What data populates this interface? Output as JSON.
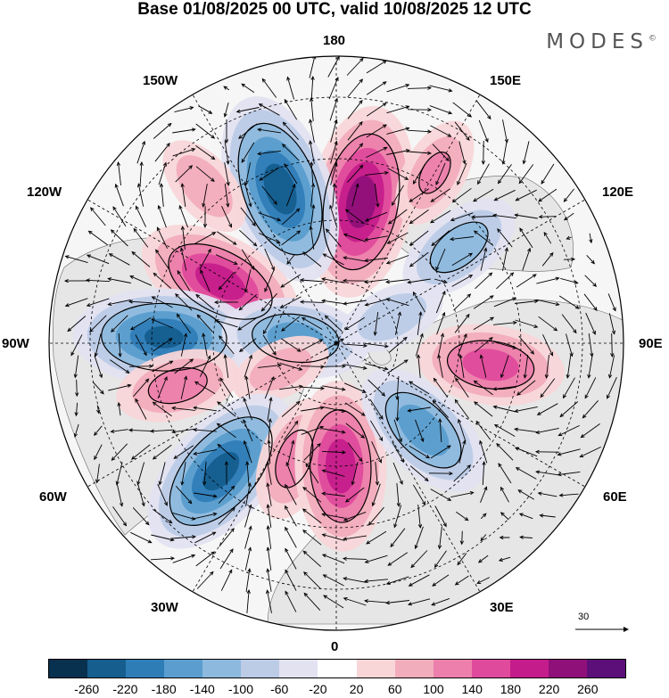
{
  "title": "Base 01/08/2025 00 UTC, valid 10/08/2025 12 UTC",
  "brand": "MODES",
  "brand_mark": "©",
  "longitude_labels": {
    "top": "180",
    "bottom": "0",
    "left": "90W",
    "right": "90E",
    "upper_left": "150W",
    "upper_right": "150E",
    "mid_upper_left": "120W",
    "mid_upper_right": "120E",
    "mid_lower_left": "60W",
    "mid_lower_right": "60E",
    "lower_left": "30W",
    "lower_right": "30E"
  },
  "reference_vector": "30",
  "colorbar": {
    "colors": [
      "#08304f",
      "#155e8e",
      "#2f7db7",
      "#5a9dce",
      "#8db9de",
      "#bccbe6",
      "#e2e2f1",
      "#ffffff",
      "#f8d6d8",
      "#f2adbc",
      "#ec7fab",
      "#e04a9c",
      "#c51c8b",
      "#90107a",
      "#5c0f79"
    ],
    "ticks": [
      "-260",
      "-220",
      "-180",
      "-140",
      "-100",
      "-60",
      "-20",
      "20",
      "60",
      "100",
      "140",
      "180",
      "220",
      "260"
    ]
  },
  "anomaly_centers": [
    {
      "lon": 170,
      "lat": 55,
      "value": 240
    },
    {
      "lon": -160,
      "lat": 50,
      "value": -240
    },
    {
      "lon": -118,
      "lat": 58,
      "value": 200
    },
    {
      "lon": -92,
      "lat": 48,
      "value": -220
    },
    {
      "lon": -97,
      "lat": 80,
      "value": -160
    },
    {
      "lon": -75,
      "lat": 50,
      "value": 120
    },
    {
      "lon": -65,
      "lat": 75,
      "value": 80
    },
    {
      "lon": -42,
      "lat": 48,
      "value": -230
    },
    {
      "lon": -20,
      "lat": 60,
      "value": 120
    },
    {
      "lon": 2,
      "lat": 60,
      "value": 200
    },
    {
      "lon": 45,
      "lat": 60,
      "value": -170
    },
    {
      "lon": 82,
      "lat": 52,
      "value": 160
    },
    {
      "lon": 128,
      "lat": 52,
      "value": -130
    },
    {
      "lon": 115,
      "lat": 75,
      "value": -90
    },
    {
      "lon": 150,
      "lat": 42,
      "value": 100
    },
    {
      "lon": -140,
      "lat": 40,
      "value": 90
    }
  ]
}
